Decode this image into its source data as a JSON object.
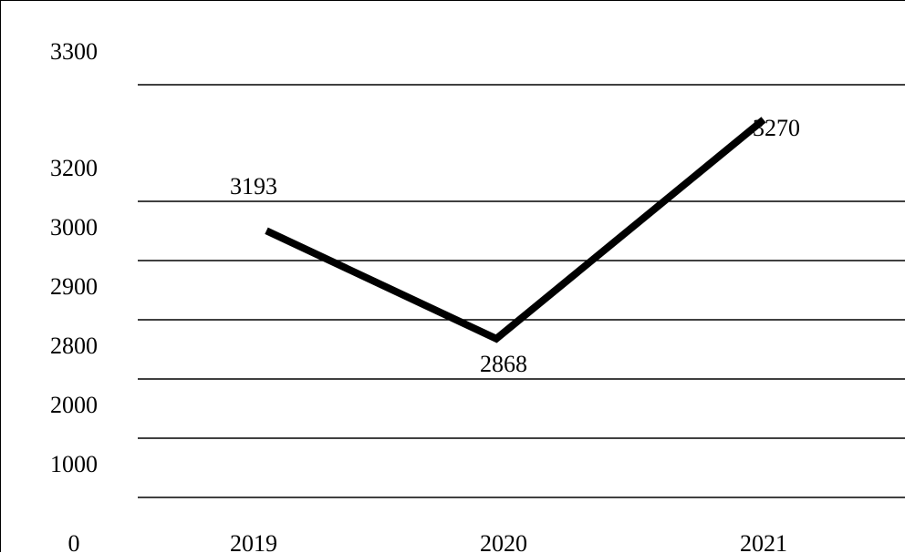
{
  "chart_data": {
    "type": "line",
    "title": "",
    "xlabel": "",
    "ylabel": "",
    "categories": [
      "2019",
      "2020",
      "2021"
    ],
    "y_ticks": [
      "0",
      "1000",
      "2000",
      "2800",
      "2900",
      "3000",
      "3200",
      "3300"
    ],
    "series": [
      {
        "values": [
          3193,
          2868,
          3270
        ],
        "labels": [
          "3193",
          "2868",
          "3270"
        ]
      }
    ],
    "grid": true,
    "colors": {
      "line": "#000000",
      "grid": "#000000"
    }
  }
}
